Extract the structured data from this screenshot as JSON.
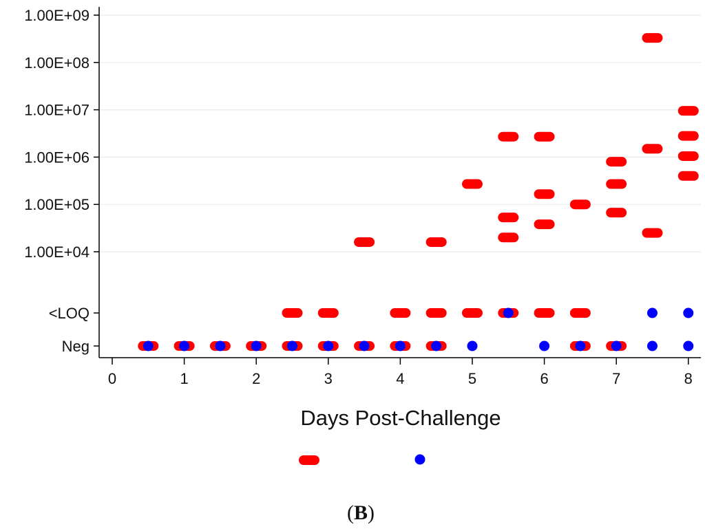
{
  "chart_data": {
    "type": "scatter",
    "title": "",
    "xlabel": "Days Post-Challenge",
    "ylabel": "",
    "xlim": [
      -0.1,
      8.2
    ],
    "x_ticks": [
      "0",
      "1",
      "2",
      "3",
      "4",
      "5",
      "6",
      "7",
      "8"
    ],
    "y_scale": "log with categorical lower levels",
    "y_ticks": [
      "Neg",
      "<LOQ",
      "1.00E+04",
      "1.00E+05",
      "1.00E+06",
      "1.00E+07",
      "1.00E+08",
      "1.00E+09"
    ],
    "grid": "horizontal",
    "legend_position": "bottom",
    "series": [
      {
        "color": "#ff0000",
        "marker": "capsule",
        "points": [
          {
            "x": 0.5,
            "y": "Neg"
          },
          {
            "x": 1,
            "y": "Neg"
          },
          {
            "x": 1.5,
            "y": "Neg"
          },
          {
            "x": 2,
            "y": "Neg"
          },
          {
            "x": 2.5,
            "y": "Neg"
          },
          {
            "x": 3,
            "y": "Neg"
          },
          {
            "x": 3.5,
            "y": "Neg"
          },
          {
            "x": 4,
            "y": "Neg"
          },
          {
            "x": 4.5,
            "y": "Neg"
          },
          {
            "x": 6.5,
            "y": "Neg"
          },
          {
            "x": 7,
            "y": "Neg"
          },
          {
            "x": 2.5,
            "y": "<LOQ"
          },
          {
            "x": 3,
            "y": "<LOQ"
          },
          {
            "x": 4,
            "y": "<LOQ"
          },
          {
            "x": 4.5,
            "y": "<LOQ"
          },
          {
            "x": 5,
            "y": "<LOQ"
          },
          {
            "x": 5.5,
            "y": "<LOQ"
          },
          {
            "x": 6,
            "y": "<LOQ"
          },
          {
            "x": 6.5,
            "y": "<LOQ"
          },
          {
            "x": 3.5,
            "y": 16000
          },
          {
            "x": 4.5,
            "y": 16000
          },
          {
            "x": 5,
            "y": 270000
          },
          {
            "x": 5.5,
            "y": 2700000
          },
          {
            "x": 5.5,
            "y": 53000
          },
          {
            "x": 5.5,
            "y": 20000
          },
          {
            "x": 6,
            "y": 2700000
          },
          {
            "x": 6,
            "y": 165000
          },
          {
            "x": 6,
            "y": 38000
          },
          {
            "x": 6.5,
            "y": 100000
          },
          {
            "x": 7,
            "y": 800000
          },
          {
            "x": 7,
            "y": 270000
          },
          {
            "x": 7,
            "y": 67000
          },
          {
            "x": 7.5,
            "y": 330000000
          },
          {
            "x": 7.5,
            "y": 1500000
          },
          {
            "x": 7.5,
            "y": 25000
          },
          {
            "x": 8,
            "y": 9500000
          },
          {
            "x": 8,
            "y": 2800000
          },
          {
            "x": 8,
            "y": 1050000
          },
          {
            "x": 8,
            "y": 400000
          }
        ]
      },
      {
        "color": "#0000ff",
        "marker": "dot",
        "points": [
          {
            "x": 0.5,
            "y": "Neg"
          },
          {
            "x": 1,
            "y": "Neg"
          },
          {
            "x": 1.5,
            "y": "Neg"
          },
          {
            "x": 2,
            "y": "Neg"
          },
          {
            "x": 2.5,
            "y": "Neg"
          },
          {
            "x": 3,
            "y": "Neg"
          },
          {
            "x": 3.5,
            "y": "Neg"
          },
          {
            "x": 4,
            "y": "Neg"
          },
          {
            "x": 4.5,
            "y": "Neg"
          },
          {
            "x": 5,
            "y": "Neg"
          },
          {
            "x": 6,
            "y": "Neg"
          },
          {
            "x": 6.5,
            "y": "Neg"
          },
          {
            "x": 7,
            "y": "Neg"
          },
          {
            "x": 7.5,
            "y": "Neg"
          },
          {
            "x": 8,
            "y": "Neg"
          },
          {
            "x": 5.5,
            "y": "<LOQ"
          },
          {
            "x": 7.5,
            "y": "<LOQ"
          },
          {
            "x": 8,
            "y": "<LOQ"
          }
        ]
      }
    ]
  },
  "caption": {
    "open": "(",
    "letter": "B",
    "close": ")"
  }
}
